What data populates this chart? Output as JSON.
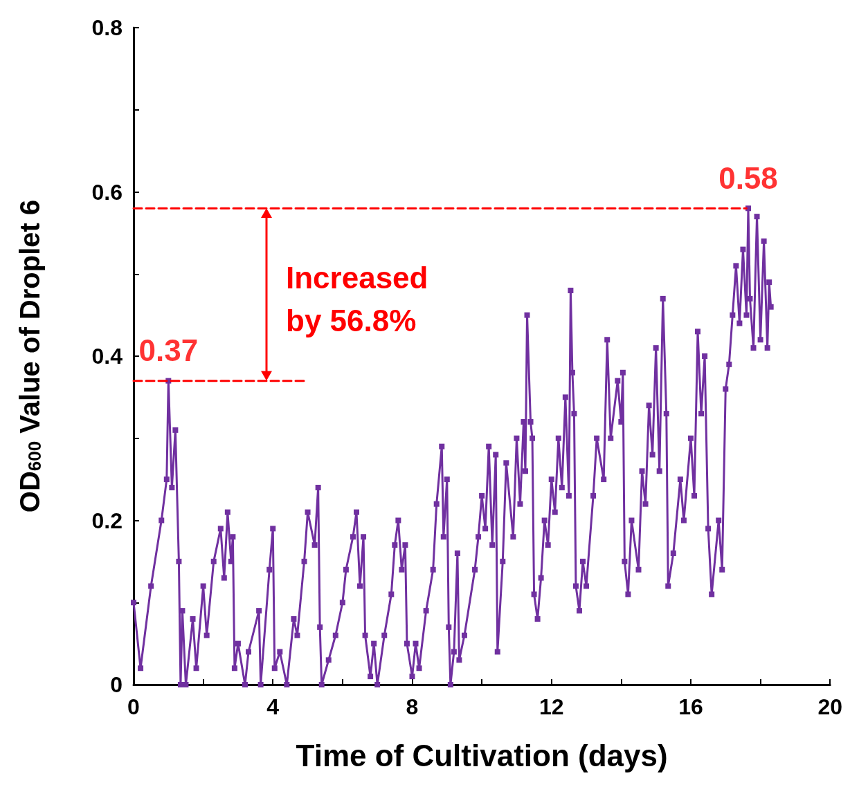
{
  "chart_data": {
    "type": "line",
    "xlabel": "Time of Cultivation (days)",
    "ylabel": "OD$_{600}$ Value of Droplet 6",
    "xlim": [
      0,
      20
    ],
    "xticks": [
      0,
      {
        "value": 2,
        "label": null
      },
      4,
      {
        "value": 6,
        "label": null
      },
      8,
      {
        "value": 10,
        "label": null
      },
      12,
      {
        "value": 14,
        "label": null
      },
      16,
      {
        "value": 18,
        "label": null
      },
      20
    ],
    "ylim": [
      0,
      0.8
    ],
    "yticks": [
      0,
      {
        "value": 0.1,
        "label": null
      },
      0.2,
      {
        "value": 0.3,
        "label": null
      },
      0.4,
      {
        "value": 0.5,
        "label": null
      },
      0.6,
      {
        "value": 0.7,
        "label": null
      },
      0.8
    ],
    "grid": false,
    "annotations": [
      {
        "text": "0.37",
        "x": 1,
        "y": 0.37
      },
      {
        "text": "0.58",
        "x": 17.65,
        "y": 0.58
      },
      "Increased by 56.8%"
    ],
    "series": [
      {
        "type": "line",
        "color": "#7030a0",
        "marker": "square",
        "line_style": "solid",
        "x": [
          0,
          0.2,
          0.5,
          0.8,
          0.95,
          1.0,
          1.1,
          1.2,
          1.3,
          1.35,
          1.4,
          1.5,
          1.7,
          1.8,
          2.0,
          2.1,
          2.3,
          2.5,
          2.6,
          2.7,
          2.8,
          2.85,
          2.9,
          3.0,
          3.2,
          3.3,
          3.6,
          3.65,
          3.9,
          4.0,
          4.05,
          4.2,
          4.4,
          4.6,
          4.7,
          4.9,
          5.0,
          5.2,
          5.3,
          5.35,
          5.4,
          5.6,
          5.8,
          6.0,
          6.1,
          6.3,
          6.4,
          6.5,
          6.6,
          6.65,
          6.8,
          6.9,
          7.0,
          7.2,
          7.4,
          7.5,
          7.6,
          7.7,
          7.8,
          7.85,
          8.0,
          8.1,
          8.2,
          8.4,
          8.6,
          8.7,
          8.85,
          8.9,
          9.0,
          9.05,
          9.1,
          9.2,
          9.3,
          9.35,
          9.5,
          9.8,
          9.9,
          10.0,
          10.1,
          10.2,
          10.3,
          10.4,
          10.45,
          10.6,
          10.7,
          10.9,
          11.0,
          11.1,
          11.2,
          11.25,
          11.3,
          11.4,
          11.45,
          11.5,
          11.6,
          11.7,
          11.8,
          11.9,
          12.0,
          12.1,
          12.2,
          12.3,
          12.4,
          12.5,
          12.55,
          12.6,
          12.65,
          12.7,
          12.8,
          12.9,
          13.0,
          13.2,
          13.3,
          13.5,
          13.6,
          13.7,
          13.9,
          14.0,
          14.05,
          14.1,
          14.2,
          14.3,
          14.5,
          14.6,
          14.7,
          14.8,
          14.9,
          15.0,
          15.1,
          15.2,
          15.3,
          15.35,
          15.5,
          15.7,
          15.8,
          16.0,
          16.1,
          16.2,
          16.3,
          16.4,
          16.5,
          16.6,
          16.8,
          16.9,
          17.0,
          17.1,
          17.2,
          17.3,
          17.4,
          17.5,
          17.6,
          17.65,
          17.7,
          17.8,
          17.9,
          18.0,
          18.1,
          18.2,
          18.25,
          18.3
        ],
        "values": [
          0.1,
          0.02,
          0.12,
          0.2,
          0.25,
          0.37,
          0.24,
          0.31,
          0.15,
          0.0,
          0.09,
          0.0,
          0.08,
          0.02,
          0.12,
          0.06,
          0.15,
          0.19,
          0.13,
          0.21,
          0.15,
          0.18,
          0.02,
          0.05,
          0.0,
          0.04,
          0.09,
          0.0,
          0.14,
          0.19,
          0.02,
          0.04,
          0.0,
          0.08,
          0.06,
          0.15,
          0.21,
          0.17,
          0.24,
          0.07,
          0.0,
          0.03,
          0.06,
          0.1,
          0.14,
          0.18,
          0.21,
          0.12,
          0.18,
          0.06,
          0.01,
          0.05,
          0.0,
          0.06,
          0.11,
          0.17,
          0.2,
          0.14,
          0.17,
          0.05,
          0.01,
          0.05,
          0.02,
          0.09,
          0.14,
          0.22,
          0.29,
          0.18,
          0.25,
          0.07,
          0.0,
          0.04,
          0.16,
          0.03,
          0.06,
          0.14,
          0.18,
          0.23,
          0.19,
          0.29,
          0.17,
          0.28,
          0.04,
          0.15,
          0.27,
          0.18,
          0.3,
          0.22,
          0.32,
          0.26,
          0.45,
          0.32,
          0.3,
          0.11,
          0.08,
          0.13,
          0.2,
          0.17,
          0.25,
          0.21,
          0.3,
          0.24,
          0.35,
          0.23,
          0.48,
          0.38,
          0.33,
          0.12,
          0.09,
          0.15,
          0.12,
          0.23,
          0.3,
          0.25,
          0.42,
          0.3,
          0.37,
          0.32,
          0.38,
          0.15,
          0.11,
          0.2,
          0.14,
          0.26,
          0.22,
          0.34,
          0.28,
          0.41,
          0.26,
          0.47,
          0.33,
          0.12,
          0.16,
          0.25,
          0.2,
          0.3,
          0.23,
          0.43,
          0.33,
          0.4,
          0.19,
          0.11,
          0.2,
          0.14,
          0.36,
          0.39,
          0.45,
          0.51,
          0.44,
          0.53,
          0.45,
          0.58,
          0.47,
          0.41,
          0.57,
          0.42,
          0.54,
          0.41,
          0.49,
          0.46
        ]
      },
      {
        "type": "line",
        "color": "#ff0000",
        "marker": "none",
        "line_style": "dashed",
        "x": [
          0,
          4.9
        ],
        "values": [
          0.37,
          0.37
        ]
      },
      {
        "type": "line",
        "color": "#ff0000",
        "marker": "none",
        "line_style": "dashed",
        "x": [
          0,
          17.6
        ],
        "values": [
          0.58,
          0.58
        ]
      }
    ]
  }
}
